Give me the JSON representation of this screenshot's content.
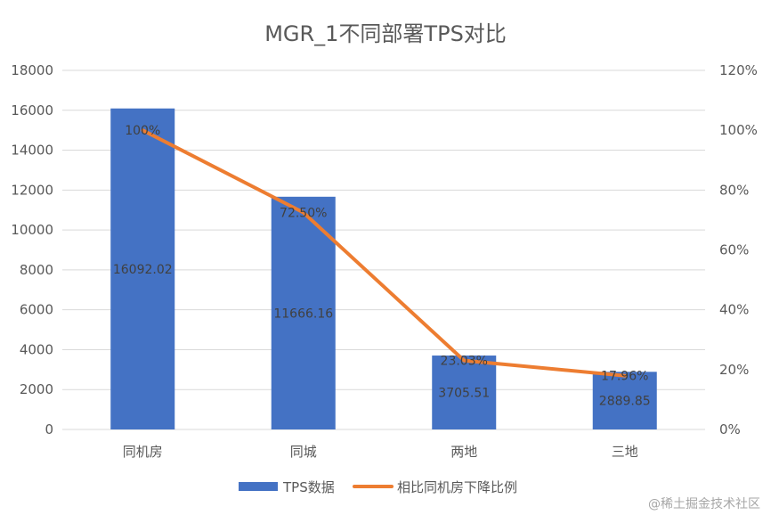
{
  "chart_data": {
    "type": "bar",
    "title": "MGR_1不同部署TPS对比",
    "categories": [
      "同机房",
      "同城",
      "两地",
      "三地"
    ],
    "series": [
      {
        "name": "TPS数据",
        "kind": "bar",
        "axis": "left",
        "color": "#4472C4",
        "values": [
          16092.02,
          11666.16,
          3705.51,
          2889.85
        ],
        "labels": [
          "16092.02",
          "11666.16",
          "3705.51",
          "2889.85"
        ]
      },
      {
        "name": "相比同机房下降比例",
        "kind": "line",
        "axis": "right",
        "color": "#ED7D31",
        "values": [
          1.0,
          0.725,
          0.2303,
          0.1796
        ],
        "labels": [
          "100%",
          "72.50%",
          "23.03%",
          "17.96%"
        ]
      }
    ],
    "y_left": {
      "lim": [
        0,
        18000
      ],
      "ticks": [
        "0",
        "2000",
        "4000",
        "6000",
        "8000",
        "10000",
        "12000",
        "14000",
        "16000",
        "18000"
      ]
    },
    "y_right": {
      "lim": [
        0,
        1.2
      ],
      "ticks": [
        "0%",
        "20%",
        "40%",
        "60%",
        "80%",
        "100%",
        "120%"
      ]
    },
    "grid": true,
    "legend": "bottom"
  },
  "watermark": "@稀土掘金技术社区"
}
